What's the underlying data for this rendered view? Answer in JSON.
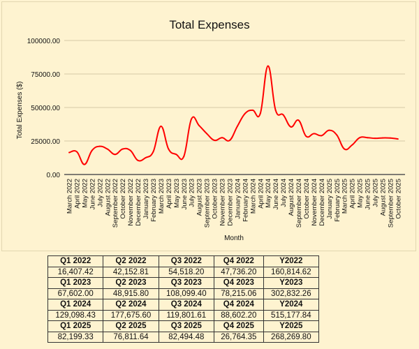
{
  "chart_data": {
    "type": "line",
    "title": "Total Expenses",
    "xlabel": "Month",
    "ylabel": "Total Expenses ($)",
    "ylim": [
      0,
      100000
    ],
    "yticks": [
      "0.00",
      "25000.00",
      "50000.00",
      "75000.00",
      "100000.00"
    ],
    "grid": true,
    "line_color": "#ff0000",
    "categories": [
      "March 2022",
      "April 2022",
      "May 2022",
      "June 2022",
      "July 2022",
      "August 2022",
      "September 2022",
      "October 2022",
      "November 2022",
      "December 2022",
      "January 2023",
      "February 2023",
      "March 2023",
      "April 2023",
      "May 2023",
      "June 2023",
      "July 2023",
      "August 2023",
      "September 2023",
      "October 2023",
      "November 2023",
      "December 2023",
      "January 2024",
      "February 2024",
      "March 2024",
      "April 2024",
      "May 2024",
      "June 2024",
      "July 2024",
      "August 2024",
      "September 2024",
      "October 2024",
      "November 2024",
      "December 2024",
      "January 2025",
      "February 2025",
      "March 2025",
      "April 2025",
      "May 2025",
      "June 2025",
      "July 2025",
      "August 2025",
      "September 2025",
      "October 2025"
    ],
    "values": [
      16400,
      17000,
      7500,
      18000,
      21000,
      19000,
      15000,
      19000,
      18000,
      10500,
      12500,
      17000,
      36000,
      19000,
      15000,
      13500,
      41500,
      36500,
      30500,
      25500,
      27500,
      25500,
      36000,
      45500,
      48000,
      45500,
      81000,
      48000,
      44500,
      35500,
      40500,
      28500,
      30500,
      29000,
      33000,
      29500,
      19000,
      22000,
      27500,
      27500,
      27000,
      27300,
      27200,
      26500
    ]
  },
  "summary_table": {
    "rows": [
      {
        "headers": [
          "Q1 2022",
          "Q2 2022",
          "Q3 2022",
          "Q4 2022",
          "Y2022"
        ],
        "values": [
          "16,407.42",
          "42,152.81",
          "54,518.20",
          "47,736.20",
          "160,814.62"
        ]
      },
      {
        "headers": [
          "Q1 2023",
          "Q2 2023",
          "Q3 2023",
          "Q4 2023",
          "Y2023"
        ],
        "values": [
          "67,602.00",
          "48,915.80",
          "108,099.40",
          "78,215.06",
          "302,832.26"
        ]
      },
      {
        "headers": [
          "Q1 2024",
          "Q2 2024",
          "Q3 2024",
          "Q4 2024",
          "Y2024"
        ],
        "values": [
          "129,098.43",
          "177,675.60",
          "119,801.61",
          "88,602.20",
          "515,177.84"
        ]
      },
      {
        "headers": [
          "Q1 2025",
          "Q2 2025",
          "Q3 2025",
          "Q4 2025",
          "Y2025"
        ],
        "values": [
          "82,199.33",
          "76,811.64",
          "82,494.48",
          "26,764.35",
          "268,269.80"
        ]
      }
    ]
  }
}
